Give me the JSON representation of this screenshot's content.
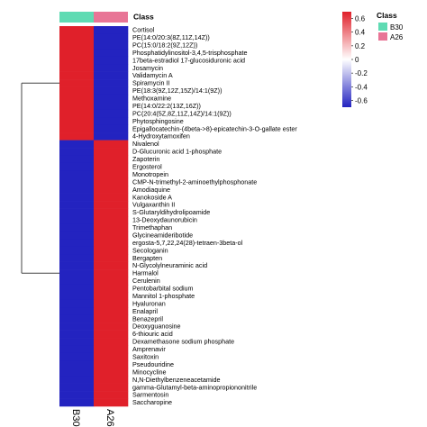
{
  "chart_data": {
    "type": "heatmap",
    "columns": [
      "B30",
      "A26"
    ],
    "class_bar_label": "Class",
    "class_legend": {
      "title": "Class",
      "entries": [
        {
          "name": "B30",
          "color": "#5fdbb3"
        },
        {
          "name": "A26",
          "color": "#e87596"
        }
      ]
    },
    "colorbar": {
      "ticks": [
        "0.6",
        "0.4",
        "0.2",
        "0",
        "-0.2",
        "-0.4",
        "-0.6"
      ],
      "tick_values": [
        0.6,
        0.4,
        0.2,
        0,
        -0.2,
        -0.4,
        -0.6
      ],
      "range": [
        -0.7,
        0.7
      ],
      "colors": {
        "high": "#e0202a",
        "mid": "#ffffff",
        "low": "#2323c0"
      }
    },
    "rows": [
      {
        "name": "Cortisol",
        "values": [
          0.7,
          -0.7
        ]
      },
      {
        "name": "PE(14:0/20:3(8Z,11Z,14Z))",
        "values": [
          0.7,
          -0.7
        ]
      },
      {
        "name": "PC(15:0/18:2(9Z,12Z))",
        "values": [
          0.7,
          -0.7
        ]
      },
      {
        "name": "Phosphatidylinositol-3,4,5-trisphosphate",
        "values": [
          0.7,
          -0.7
        ]
      },
      {
        "name": "17beta-estradiol 17-glucosiduronic acid",
        "values": [
          0.7,
          -0.7
        ]
      },
      {
        "name": "Josamycin",
        "values": [
          0.7,
          -0.7
        ]
      },
      {
        "name": "Validamycin A",
        "values": [
          0.7,
          -0.7
        ]
      },
      {
        "name": "Spiramycin II",
        "values": [
          0.7,
          -0.7
        ]
      },
      {
        "name": "PE(18:3(9Z,12Z,15Z)/14:1(9Z))",
        "values": [
          0.7,
          -0.7
        ]
      },
      {
        "name": "Methoxamine",
        "values": [
          0.7,
          -0.7
        ]
      },
      {
        "name": "PE(14:0/22:2(13Z,16Z))",
        "values": [
          0.7,
          -0.7
        ]
      },
      {
        "name": "PC(20:4(5Z,8Z,11Z,14Z)/14:1(9Z))",
        "values": [
          0.7,
          -0.7
        ]
      },
      {
        "name": "Phytosphingosine",
        "values": [
          0.7,
          -0.7
        ]
      },
      {
        "name": "Epigallocatechin-(4beta->8)-epicatechin-3-O-gallate ester",
        "values": [
          0.7,
          -0.7
        ]
      },
      {
        "name": "4-Hydroxytamoxifen",
        "values": [
          0.7,
          -0.7
        ]
      },
      {
        "name": "Nivalenol",
        "values": [
          -0.7,
          0.7
        ]
      },
      {
        "name": "D-Glucuronic acid 1-phosphate",
        "values": [
          -0.7,
          0.7
        ]
      },
      {
        "name": "Zapoterin",
        "values": [
          -0.7,
          0.7
        ]
      },
      {
        "name": "Ergosterol",
        "values": [
          -0.7,
          0.7
        ]
      },
      {
        "name": "Monotropein",
        "values": [
          -0.7,
          0.7
        ]
      },
      {
        "name": "CMP-N-trimethyl-2-aminoethylphosphonate",
        "values": [
          -0.7,
          0.7
        ]
      },
      {
        "name": "Amodiaquine",
        "values": [
          -0.7,
          0.7
        ]
      },
      {
        "name": "Kanokoside A",
        "values": [
          -0.7,
          0.7
        ]
      },
      {
        "name": "Vulgaxanthin II",
        "values": [
          -0.7,
          0.7
        ]
      },
      {
        "name": "S-Glutaryldihydrolipoamide",
        "values": [
          -0.7,
          0.7
        ]
      },
      {
        "name": "13-Deoxydaunorubicin",
        "values": [
          -0.7,
          0.7
        ]
      },
      {
        "name": "Trimethaphan",
        "values": [
          -0.7,
          0.7
        ]
      },
      {
        "name": "Glycineamideribotide",
        "values": [
          -0.7,
          0.7
        ]
      },
      {
        "name": "ergosta-5,7,22,24(28)-tetraen-3beta-ol",
        "values": [
          -0.7,
          0.7
        ]
      },
      {
        "name": "Secologanin",
        "values": [
          -0.7,
          0.7
        ]
      },
      {
        "name": "Bergapten",
        "values": [
          -0.7,
          0.7
        ]
      },
      {
        "name": "N-Glycolylneuraminic acid",
        "values": [
          -0.7,
          0.7
        ]
      },
      {
        "name": "Harmalol",
        "values": [
          -0.7,
          0.7
        ]
      },
      {
        "name": "Cerulenin",
        "values": [
          -0.7,
          0.7
        ]
      },
      {
        "name": "Pentobarbital sodium",
        "values": [
          -0.7,
          0.7
        ]
      },
      {
        "name": "Mannitol 1-phosphate",
        "values": [
          -0.7,
          0.7
        ]
      },
      {
        "name": "Hyaluronan",
        "values": [
          -0.7,
          0.7
        ]
      },
      {
        "name": "Enalapril",
        "values": [
          -0.7,
          0.7
        ]
      },
      {
        "name": "Benazepril",
        "values": [
          -0.7,
          0.7
        ]
      },
      {
        "name": "Deoxyguanosine",
        "values": [
          -0.7,
          0.7
        ]
      },
      {
        "name": "6-thiouric acid",
        "values": [
          -0.7,
          0.7
        ]
      },
      {
        "name": "Dexamethasone sodium phosphate",
        "values": [
          -0.7,
          0.7
        ]
      },
      {
        "name": "Amprenavir",
        "values": [
          -0.7,
          0.7
        ]
      },
      {
        "name": "Saxitoxin",
        "values": [
          -0.7,
          0.7
        ]
      },
      {
        "name": "Pseudouridine",
        "values": [
          -0.7,
          0.7
        ]
      },
      {
        "name": "Minocycline",
        "values": [
          -0.7,
          0.7
        ]
      },
      {
        "name": "N,N-Diethylbenzeneacetamide",
        "values": [
          -0.7,
          0.7
        ]
      },
      {
        "name": "gamma-Glutamyl-beta-aminopropiononitrile",
        "values": [
          -0.7,
          0.7
        ]
      },
      {
        "name": "Sarmentosin",
        "values": [
          -0.7,
          0.7
        ]
      },
      {
        "name": "Saccharopine",
        "values": [
          -0.7,
          0.7
        ]
      }
    ],
    "row_clusters": [
      15,
      35
    ],
    "grid": false,
    "legend_placement": "top-right"
  }
}
